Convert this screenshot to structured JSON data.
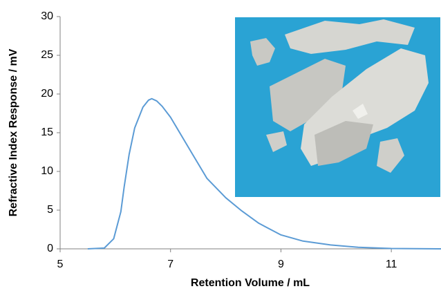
{
  "chart_data": {
    "type": "line",
    "xlabel": "Retention Volume / mL",
    "ylabel": "Refractive Index Response / mV",
    "x": [
      5.5,
      5.8,
      5.97,
      6.1,
      6.16,
      6.25,
      6.35,
      6.5,
      6.6,
      6.66,
      6.75,
      6.85,
      7.0,
      7.2,
      7.4,
      7.66,
      8.0,
      8.29,
      8.6,
      9.0,
      9.4,
      9.9,
      10.4,
      11.0,
      11.9
    ],
    "values": [
      0,
      0.1,
      1.3,
      4.8,
      8.0,
      12.2,
      15.6,
      18.3,
      19.2,
      19.4,
      19.1,
      18.4,
      17.0,
      14.6,
      12.2,
      9.1,
      6.6,
      4.9,
      3.3,
      1.8,
      1.0,
      0.5,
      0.2,
      0.05,
      0
    ],
    "color": "#5b9bd5",
    "xlim": [
      5,
      11.9
    ],
    "xticks": [
      5,
      7,
      9,
      11
    ],
    "ylim": [
      0,
      30
    ],
    "yticks": [
      0,
      5,
      10,
      15,
      20,
      25,
      30
    ]
  }
}
